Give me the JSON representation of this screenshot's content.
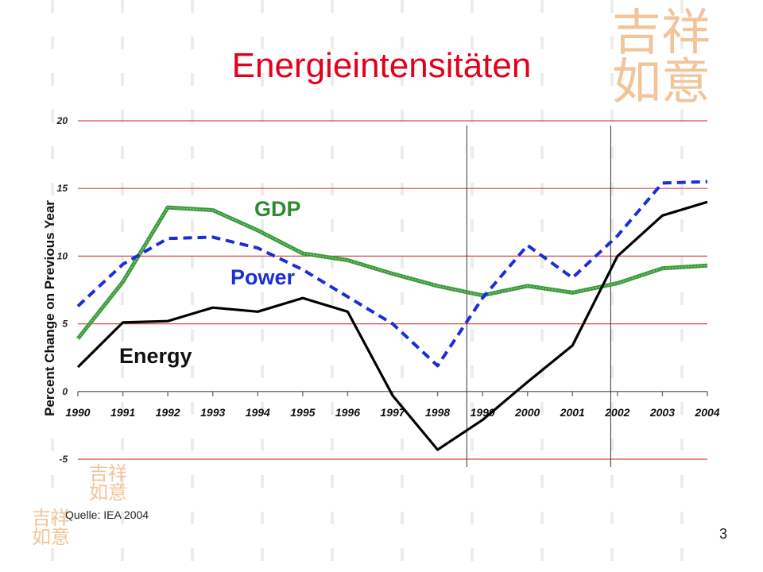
{
  "slide": {
    "title": "Energieintensitäten",
    "source": "Quelle:  IEA 2004",
    "page_number": "3"
  },
  "colors": {
    "title": "#e3001b",
    "gridline": "#d84848",
    "gdp": "#3a9a3a",
    "power": "#1a2ed8",
    "energy": "#000000",
    "watermark": "#f2c49a"
  },
  "chart_data": {
    "type": "line",
    "x": [
      "1990",
      "1991",
      "1992",
      "1993",
      "1994",
      "1995",
      "1996",
      "1997",
      "1998",
      "1999",
      "2000",
      "2001",
      "2002",
      "2003",
      "2004"
    ],
    "ylabel": "Percent Change on Previous Year",
    "xlabel": "",
    "ylim": [
      -5,
      20
    ],
    "yticks": [
      "-5",
      "0",
      "5",
      "10",
      "15",
      "20"
    ],
    "grid": true,
    "series": [
      {
        "name": "GDP",
        "style": "thick-green",
        "values": [
          3.9,
          8.1,
          13.6,
          13.4,
          11.9,
          10.2,
          9.7,
          8.7,
          7.8,
          7.1,
          7.8,
          7.3,
          8.0,
          9.1,
          9.3
        ]
      },
      {
        "name": "Power",
        "style": "dashed-blue",
        "values": [
          6.3,
          9.4,
          11.3,
          11.4,
          10.6,
          9.0,
          7.0,
          5.0,
          1.9,
          6.9,
          10.8,
          8.4,
          11.5,
          15.4,
          15.5
        ]
      },
      {
        "name": "Energy",
        "style": "solid-black",
        "values": [
          1.8,
          5.1,
          5.2,
          6.2,
          5.9,
          6.9,
          5.9,
          -0.3,
          -4.3,
          -2.1,
          0.7,
          3.4,
          10.0,
          13.0,
          14.0
        ]
      }
    ],
    "markers": [
      "1998/1999",
      "2001/2002"
    ]
  }
}
